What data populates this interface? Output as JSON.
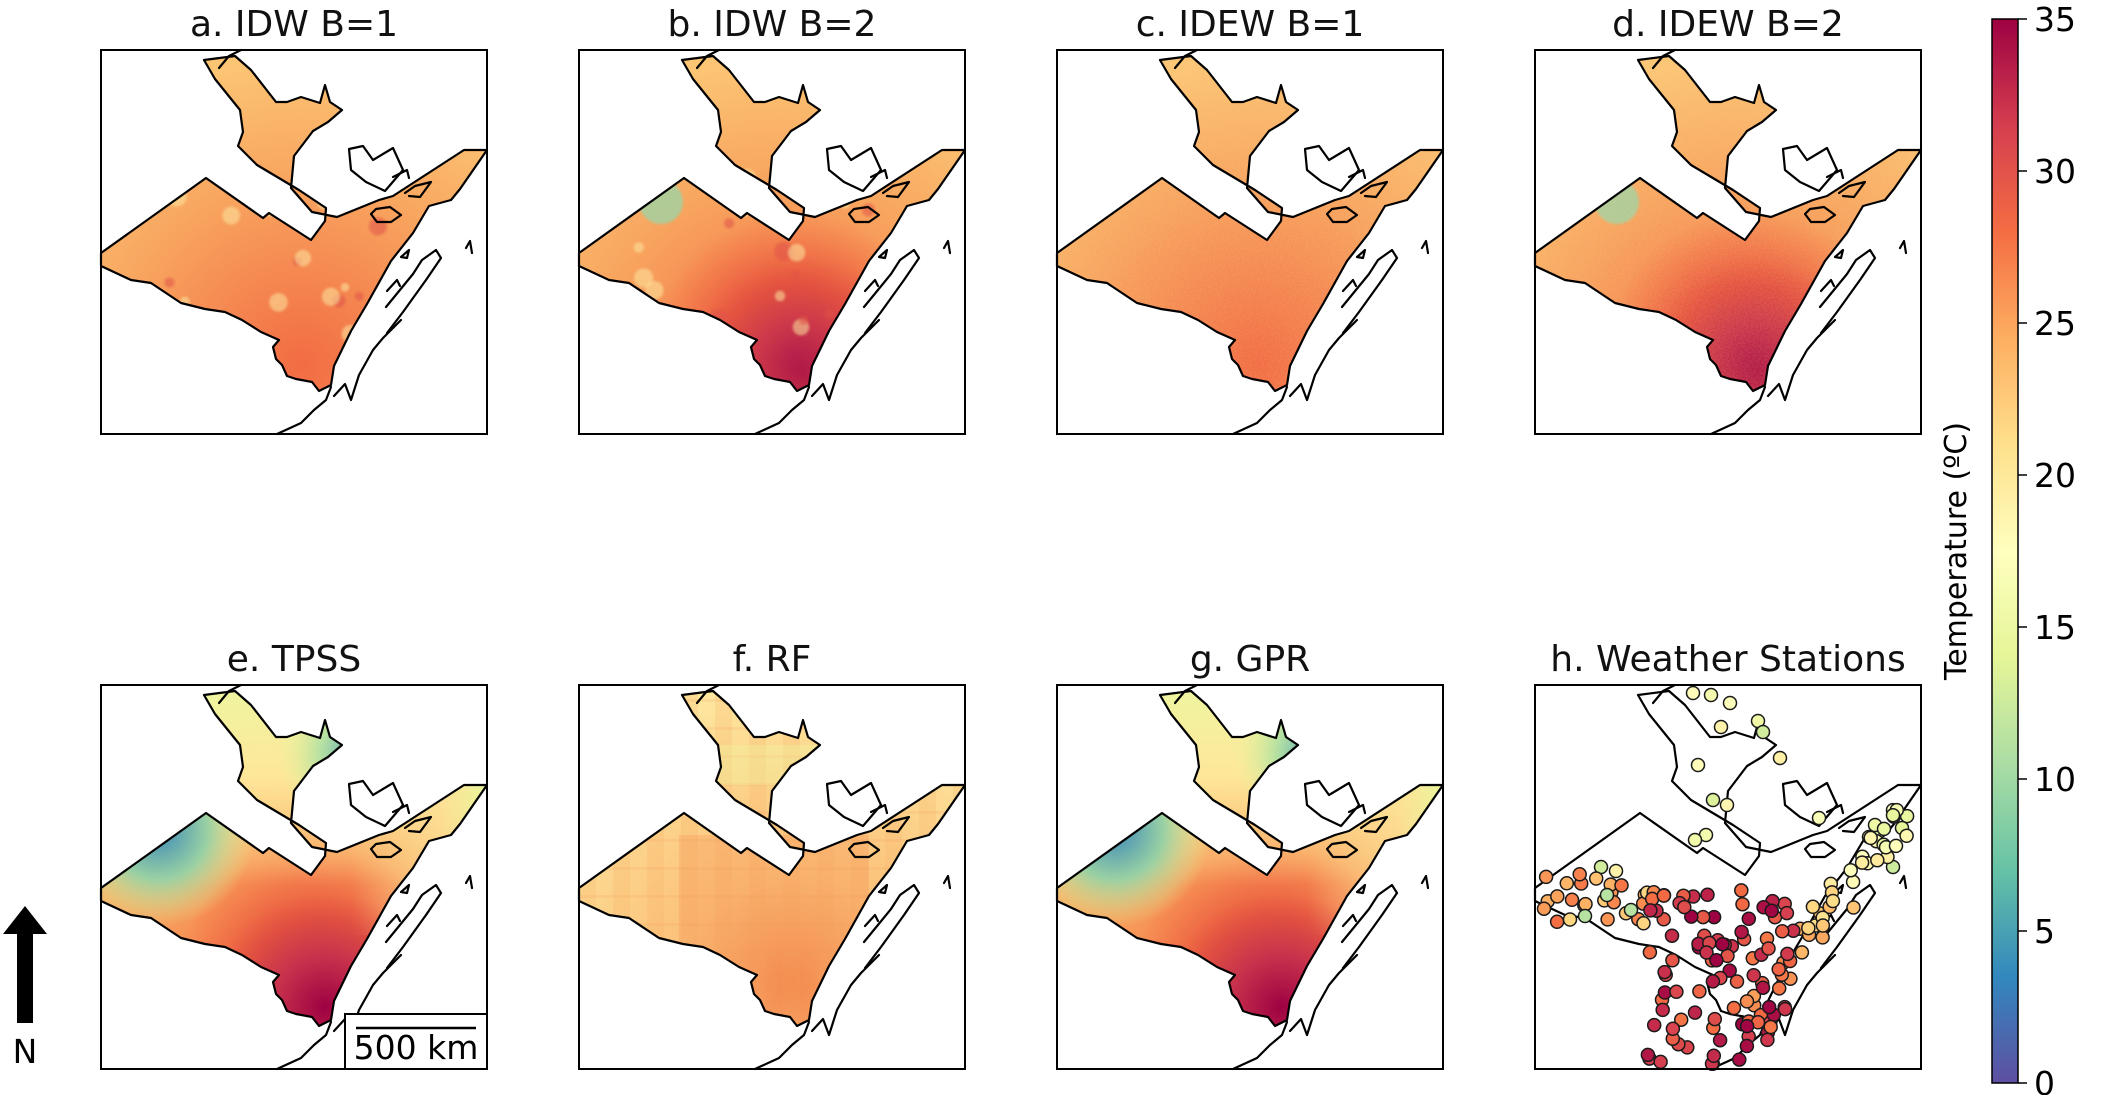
{
  "panels": [
    {
      "id": "a",
      "title": "a. IDW B=1",
      "variant": "idw1"
    },
    {
      "id": "b",
      "title": "b. IDW B=2",
      "variant": "idw2"
    },
    {
      "id": "c",
      "title": "c. IDEW B=1",
      "variant": "idew1"
    },
    {
      "id": "d",
      "title": "d. IDEW B=2",
      "variant": "idew2"
    },
    {
      "id": "e",
      "title": "e. TPSS",
      "variant": "tpss"
    },
    {
      "id": "f",
      "title": "f. RF",
      "variant": "rf"
    },
    {
      "id": "g",
      "title": "g. GPR",
      "variant": "gpr"
    },
    {
      "id": "h",
      "title": "h. Weather Stations",
      "variant": "stations"
    }
  ],
  "colorbar": {
    "label": "Temperature (ºC)",
    "min": 0,
    "max": 35,
    "ticks": [
      "0",
      "5",
      "10",
      "15",
      "20",
      "25",
      "30",
      "35"
    ],
    "colormap": "Spectral_r",
    "stops": [
      "#5e4fa2",
      "#3288bd",
      "#66c2a5",
      "#abdda4",
      "#e6f598",
      "#ffffbf",
      "#fee08b",
      "#fdae61",
      "#f46d43",
      "#d53e4f",
      "#9e0142"
    ]
  },
  "scale_bar": {
    "label": "500 km"
  },
  "north_arrow": {
    "label": "N"
  },
  "colors": {
    "outline": "#000000",
    "background": "#ffffff"
  }
}
